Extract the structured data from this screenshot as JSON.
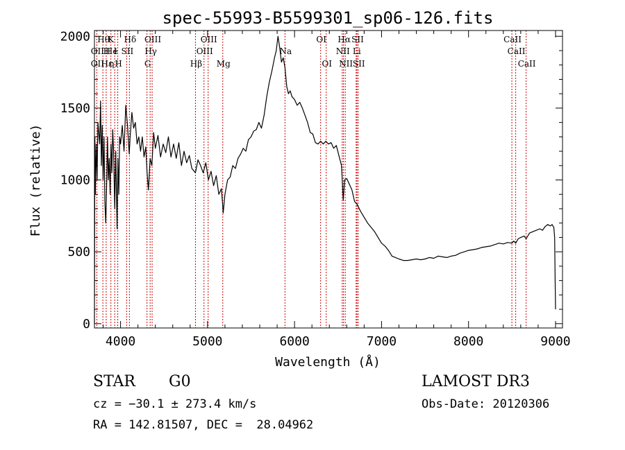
{
  "chart_data": {
    "type": "line",
    "title": "spec-55993-B5599301_sp06-126.fits",
    "xlabel": "Wavelength (Å)",
    "ylabel": "Flux (relative)",
    "xlim": [
      3700,
      9080
    ],
    "ylim": [
      -30,
      2040
    ],
    "xticks": [
      4000,
      5000,
      6000,
      7000,
      8000,
      9000
    ],
    "yticks": [
      0,
      500,
      1000,
      1500,
      2000
    ],
    "grid": false,
    "series": [
      {
        "name": "flux",
        "color": "#000000",
        "points": [
          [
            3700,
            0
          ],
          [
            3705,
            1300
          ],
          [
            3710,
            900
          ],
          [
            3720,
            1250
          ],
          [
            3730,
            1000
          ],
          [
            3740,
            1400
          ],
          [
            3760,
            1250
          ],
          [
            3770,
            1550
          ],
          [
            3780,
            1100
          ],
          [
            3790,
            1380
          ],
          [
            3800,
            1000
          ],
          [
            3810,
            1300
          ],
          [
            3820,
            850
          ],
          [
            3830,
            700
          ],
          [
            3840,
            950
          ],
          [
            3850,
            1300
          ],
          [
            3860,
            1000
          ],
          [
            3870,
            1150
          ],
          [
            3880,
            900
          ],
          [
            3890,
            1250
          ],
          [
            3900,
            1050
          ],
          [
            3910,
            1350
          ],
          [
            3920,
            1200
          ],
          [
            3933,
            800
          ],
          [
            3945,
            1200
          ],
          [
            3960,
            660
          ],
          [
            3970,
            1150
          ],
          [
            3980,
            900
          ],
          [
            3990,
            1300
          ],
          [
            4000,
            1250
          ],
          [
            4020,
            1380
          ],
          [
            4040,
            1200
          ],
          [
            4060,
            1520
          ],
          [
            4080,
            1380
          ],
          [
            4100,
            1180
          ],
          [
            4110,
            1300
          ],
          [
            4130,
            1470
          ],
          [
            4150,
            1360
          ],
          [
            4170,
            1400
          ],
          [
            4190,
            1250
          ],
          [
            4210,
            1300
          ],
          [
            4230,
            1200
          ],
          [
            4250,
            1300
          ],
          [
            4270,
            1160
          ],
          [
            4290,
            1230
          ],
          [
            4305,
            1050
          ],
          [
            4320,
            930
          ],
          [
            4340,
            1150
          ],
          [
            4360,
            1100
          ],
          [
            4380,
            1330
          ],
          [
            4400,
            1220
          ],
          [
            4430,
            1310
          ],
          [
            4460,
            1160
          ],
          [
            4490,
            1250
          ],
          [
            4520,
            1190
          ],
          [
            4550,
            1300
          ],
          [
            4580,
            1160
          ],
          [
            4610,
            1250
          ],
          [
            4640,
            1150
          ],
          [
            4670,
            1260
          ],
          [
            4700,
            1100
          ],
          [
            4730,
            1200
          ],
          [
            4760,
            1120
          ],
          [
            4790,
            1170
          ],
          [
            4820,
            1080
          ],
          [
            4861,
            1050
          ],
          [
            4890,
            1140
          ],
          [
            4920,
            1100
          ],
          [
            4950,
            1050
          ],
          [
            4980,
            1120
          ],
          [
            5010,
            1000
          ],
          [
            5040,
            1060
          ],
          [
            5070,
            960
          ],
          [
            5100,
            1030
          ],
          [
            5130,
            900
          ],
          [
            5160,
            940
          ],
          [
            5180,
            770
          ],
          [
            5200,
            900
          ],
          [
            5230,
            1000
          ],
          [
            5260,
            1020
          ],
          [
            5290,
            1100
          ],
          [
            5320,
            1080
          ],
          [
            5350,
            1150
          ],
          [
            5380,
            1180
          ],
          [
            5410,
            1220
          ],
          [
            5440,
            1200
          ],
          [
            5470,
            1280
          ],
          [
            5500,
            1300
          ],
          [
            5530,
            1340
          ],
          [
            5560,
            1350
          ],
          [
            5590,
            1400
          ],
          [
            5620,
            1360
          ],
          [
            5650,
            1450
          ],
          [
            5680,
            1580
          ],
          [
            5710,
            1680
          ],
          [
            5740,
            1760
          ],
          [
            5770,
            1850
          ],
          [
            5790,
            1900
          ],
          [
            5810,
            2000
          ],
          [
            5830,
            1920
          ],
          [
            5850,
            1820
          ],
          [
            5870,
            1850
          ],
          [
            5890,
            1780
          ],
          [
            5910,
            1650
          ],
          [
            5930,
            1600
          ],
          [
            5950,
            1620
          ],
          [
            5970,
            1580
          ],
          [
            6000,
            1560
          ],
          [
            6030,
            1520
          ],
          [
            6060,
            1540
          ],
          [
            6090,
            1500
          ],
          [
            6120,
            1450
          ],
          [
            6150,
            1400
          ],
          [
            6180,
            1330
          ],
          [
            6210,
            1320
          ],
          [
            6240,
            1260
          ],
          [
            6270,
            1250
          ],
          [
            6300,
            1270
          ],
          [
            6330,
            1250
          ],
          [
            6360,
            1270
          ],
          [
            6390,
            1250
          ],
          [
            6420,
            1260
          ],
          [
            6450,
            1220
          ],
          [
            6480,
            1240
          ],
          [
            6510,
            1170
          ],
          [
            6540,
            1100
          ],
          [
            6560,
            860
          ],
          [
            6575,
            1000
          ],
          [
            6600,
            1010
          ],
          [
            6630,
            970
          ],
          [
            6660,
            930
          ],
          [
            6690,
            850
          ],
          [
            6720,
            830
          ],
          [
            6760,
            780
          ],
          [
            6800,
            740
          ],
          [
            6840,
            700
          ],
          [
            6880,
            670
          ],
          [
            6920,
            640
          ],
          [
            6960,
            600
          ],
          [
            7000,
            560
          ],
          [
            7040,
            540
          ],
          [
            7080,
            510
          ],
          [
            7120,
            470
          ],
          [
            7160,
            460
          ],
          [
            7200,
            450
          ],
          [
            7250,
            440
          ],
          [
            7300,
            440
          ],
          [
            7350,
            445
          ],
          [
            7400,
            450
          ],
          [
            7450,
            445
          ],
          [
            7500,
            450
          ],
          [
            7550,
            460
          ],
          [
            7600,
            455
          ],
          [
            7650,
            470
          ],
          [
            7700,
            465
          ],
          [
            7750,
            460
          ],
          [
            7800,
            470
          ],
          [
            7850,
            475
          ],
          [
            7900,
            490
          ],
          [
            7950,
            500
          ],
          [
            8000,
            510
          ],
          [
            8050,
            515
          ],
          [
            8100,
            520
          ],
          [
            8150,
            530
          ],
          [
            8200,
            535
          ],
          [
            8250,
            540
          ],
          [
            8300,
            550
          ],
          [
            8350,
            560
          ],
          [
            8400,
            555
          ],
          [
            8450,
            565
          ],
          [
            8498,
            560
          ],
          [
            8520,
            575
          ],
          [
            8542,
            560
          ],
          [
            8570,
            590
          ],
          [
            8600,
            600
          ],
          [
            8640,
            610
          ],
          [
            8662,
            590
          ],
          [
            8700,
            630
          ],
          [
            8740,
            640
          ],
          [
            8780,
            650
          ],
          [
            8820,
            660
          ],
          [
            8850,
            650
          ],
          [
            8880,
            675
          ],
          [
            8910,
            690
          ],
          [
            8940,
            680
          ],
          [
            8960,
            690
          ],
          [
            8980,
            670
          ],
          [
            8990,
            600
          ],
          [
            8995,
            300
          ],
          [
            9000,
            100
          ]
        ]
      }
    ],
    "annotations": [
      {
        "label": "Hθ",
        "x": 3797,
        "row": 0
      },
      {
        "label": "K",
        "x": 3880,
        "row": 0
      },
      {
        "label": "Hδ",
        "x": 4102,
        "row": 0
      },
      {
        "label": "OIII",
        "x": 4363,
        "row": 0
      },
      {
        "label": "OIII",
        "x": 5007,
        "row": 0
      },
      {
        "label": "OI",
        "x": 6300,
        "row": 0
      },
      {
        "label": "Hα",
        "x": 6563,
        "row": 0
      },
      {
        "label": "SII",
        "x": 6717,
        "row": 0
      },
      {
        "label": "CaII",
        "x": 8498,
        "row": 0
      },
      {
        "label": "OII",
        "x": 3727,
        "row": 1
      },
      {
        "label": "H",
        "x": 3835,
        "row": 1
      },
      {
        "label": "He",
        "x": 3889,
        "row": 1
      },
      {
        "label": "I",
        "x": 3933,
        "row": 1
      },
      {
        "label": "SII",
        "x": 4070,
        "row": 1
      },
      {
        "label": "Hγ",
        "x": 4340,
        "row": 1
      },
      {
        "label": "OIII",
        "x": 4959,
        "row": 1
      },
      {
        "label": "Na",
        "x": 5890,
        "row": 1
      },
      {
        "label": "NII",
        "x": 6548,
        "row": 1
      },
      {
        "label": "Li",
        "x": 6708,
        "row": 1
      },
      {
        "label": "CaII",
        "x": 8542,
        "row": 1
      },
      {
        "label": "OII",
        "x": 3727,
        "row": 2
      },
      {
        "label": "Hε",
        "x": 3835,
        "row": 2
      },
      {
        "label": "η",
        "x": 3889,
        "row": 2
      },
      {
        "label": "H",
        "x": 3968,
        "row": 2
      },
      {
        "label": "G",
        "x": 4304,
        "row": 2
      },
      {
        "label": "Hβ",
        "x": 4861,
        "row": 2
      },
      {
        "label": "Mg",
        "x": 5175,
        "row": 2
      },
      {
        "label": "OI",
        "x": 6364,
        "row": 2
      },
      {
        "label": "NII",
        "x": 6583,
        "row": 2
      },
      {
        "label": "SII",
        "x": 6731,
        "row": 2
      },
      {
        "label": "CaII",
        "x": 8662,
        "row": 2
      }
    ],
    "line_markers": [
      3727,
      3797,
      3835,
      3889,
      3933,
      3968,
      4070,
      4102,
      4304,
      4340,
      4363,
      4861,
      4959,
      5007,
      5175,
      5890,
      6300,
      6364,
      6548,
      6563,
      6583,
      6708,
      6717,
      6731,
      8498,
      8542,
      8662
    ],
    "line_marker_color": "#cc0000"
  },
  "info": {
    "object_class": "STAR",
    "subclass": "G0",
    "survey": "LAMOST DR3",
    "cz": "cz = −30.1 ± 273.4 km/s",
    "obs_date": "Obs-Date: 20120306",
    "coords": "RA = 142.81507, DEC =  28.04962"
  }
}
